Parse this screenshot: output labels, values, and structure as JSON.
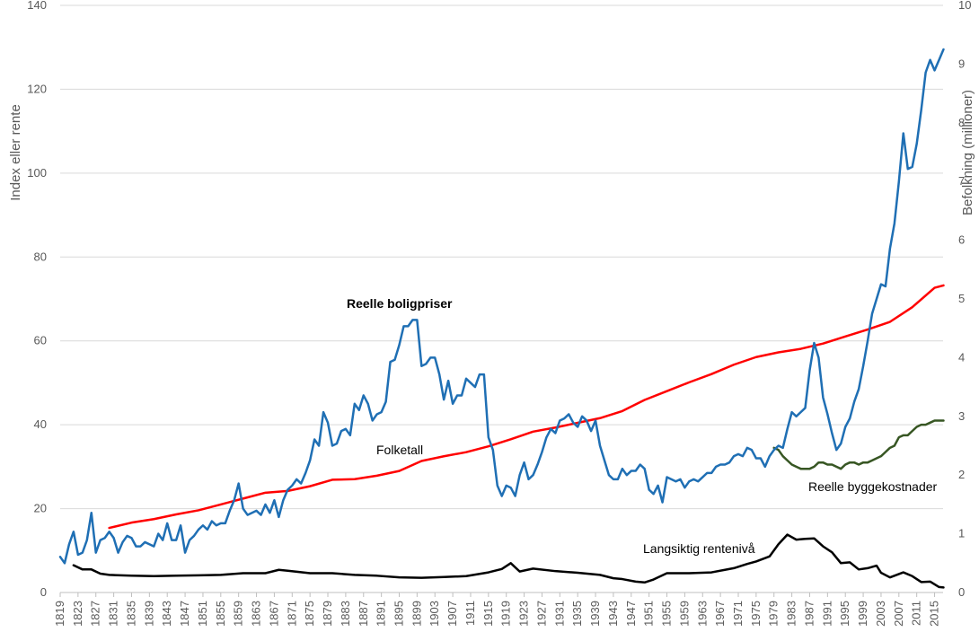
{
  "chart_data": {
    "type": "line",
    "ylabel_left": "Index eller rente",
    "ylabel_right": "Befolkning (millioner)",
    "xlim": [
      1819,
      2017
    ],
    "ylim_left": [
      0,
      140
    ],
    "ylim_right": [
      0,
      10
    ],
    "grid": true,
    "x_ticks": [
      "1819",
      "1823",
      "1827",
      "1831",
      "1835",
      "1839",
      "1843",
      "1847",
      "1851",
      "1855",
      "1859",
      "1863",
      "1867",
      "1871",
      "1875",
      "1879",
      "1883",
      "1887",
      "1891",
      "1895",
      "1899",
      "1903",
      "1907",
      "1911",
      "1915",
      "1919",
      "1923",
      "1927",
      "1931",
      "1935",
      "1939",
      "1943",
      "1947",
      "1951",
      "1955",
      "1959",
      "1963",
      "1967",
      "1971",
      "1975",
      "1979",
      "1983",
      "1987",
      "1991",
      "1995",
      "1999",
      "2003",
      "2007",
      "2011",
      "2015"
    ],
    "y_ticks_left": [
      "0",
      "20",
      "40",
      "60",
      "80",
      "100",
      "120",
      "140"
    ],
    "y_ticks_right": [
      "0",
      "1",
      "2",
      "3",
      "4",
      "5",
      "6",
      "7",
      "8",
      "9",
      "10"
    ],
    "annotations": {
      "boligpriser": "Reelle boligpriser",
      "folketall": "Folketall",
      "byggekostnader": "Reelle  byggekostnader",
      "rente": "Langsiktig rentenivå"
    },
    "series": [
      {
        "name": "Reelle boligpriser",
        "axis": "left",
        "color": "#1F6FB4",
        "x": [
          1819,
          1820,
          1821,
          1822,
          1823,
          1824,
          1825,
          1826,
          1827,
          1828,
          1829,
          1830,
          1831,
          1832,
          1833,
          1834,
          1835,
          1836,
          1837,
          1838,
          1839,
          1840,
          1841,
          1842,
          1843,
          1844,
          1845,
          1846,
          1847,
          1848,
          1849,
          1850,
          1851,
          1852,
          1853,
          1854,
          1855,
          1856,
          1857,
          1858,
          1859,
          1860,
          1861,
          1862,
          1863,
          1864,
          1865,
          1866,
          1867,
          1868,
          1869,
          1870,
          1871,
          1872,
          1873,
          1874,
          1875,
          1876,
          1877,
          1878,
          1879,
          1880,
          1881,
          1882,
          1883,
          1884,
          1885,
          1886,
          1887,
          1888,
          1889,
          1890,
          1891,
          1892,
          1893,
          1894,
          1895,
          1896,
          1897,
          1898,
          1899,
          1900,
          1901,
          1902,
          1903,
          1904,
          1905,
          1906,
          1907,
          1908,
          1909,
          1910,
          1911,
          1912,
          1913,
          1914,
          1915,
          1916,
          1917,
          1918,
          1919,
          1920,
          1921,
          1922,
          1923,
          1924,
          1925,
          1926,
          1927,
          1928,
          1929,
          1930,
          1931,
          1932,
          1933,
          1934,
          1935,
          1936,
          1937,
          1938,
          1939,
          1940,
          1941,
          1942,
          1943,
          1944,
          1945,
          1946,
          1947,
          1948,
          1949,
          1950,
          1951,
          1952,
          1953,
          1954,
          1955,
          1956,
          1957,
          1958,
          1959,
          1960,
          1961,
          1962,
          1963,
          1964,
          1965,
          1966,
          1967,
          1968,
          1969,
          1970,
          1971,
          1972,
          1973,
          1974,
          1975,
          1976,
          1977,
          1978,
          1979,
          1980,
          1981,
          1982,
          1983,
          1984,
          1985,
          1986,
          1987,
          1988,
          1989,
          1990,
          1991,
          1992,
          1993,
          1994,
          1995,
          1996,
          1997,
          1998,
          1999,
          2000,
          2001,
          2002,
          2003,
          2004,
          2005,
          2006,
          2007,
          2008,
          2009,
          2010,
          2011,
          2012,
          2013,
          2014,
          2015,
          2016,
          2017
        ],
        "values": [
          8.5,
          7,
          11.5,
          14.5,
          9,
          9.5,
          12.5,
          19,
          9.5,
          12.5,
          13,
          14.5,
          13,
          9.5,
          12,
          13.5,
          13,
          11,
          11,
          12,
          11.5,
          11,
          14,
          12.5,
          16.5,
          12.5,
          12.5,
          16,
          9.5,
          12.5,
          13.5,
          15,
          16,
          15,
          17,
          16,
          16.5,
          16.5,
          19.5,
          22,
          26,
          20,
          18.5,
          19,
          19.5,
          18.5,
          21,
          19,
          22,
          18,
          22,
          24.5,
          25.5,
          27,
          26,
          28.5,
          31.5,
          36.5,
          35,
          43,
          40.5,
          35,
          35.5,
          38.5,
          39,
          37.5,
          45,
          43.5,
          47,
          45,
          41,
          42.5,
          43,
          45.5,
          55,
          55.5,
          59,
          63.5,
          63.5,
          65,
          65,
          54,
          54.5,
          56,
          56,
          52,
          46,
          50.5,
          45,
          47,
          47,
          51,
          50,
          49,
          52,
          52,
          37,
          34,
          25.5,
          23,
          25.5,
          25,
          23,
          28,
          31,
          27,
          28,
          30.5,
          33.5,
          37,
          39,
          38,
          41,
          41.5,
          42.5,
          40.5,
          39.5,
          42,
          41,
          38.5,
          41,
          35,
          31.5,
          28,
          27,
          27,
          29.5,
          28,
          29,
          29,
          30.5,
          29.5,
          24.5,
          23.5,
          25.5,
          21.5,
          27.5,
          27,
          26.5,
          27,
          25,
          26.5,
          27,
          26.5,
          27.5,
          28.5,
          28.5,
          30,
          30.5,
          30.5,
          31,
          32.5,
          33,
          32.5,
          34.5,
          34,
          32,
          32,
          30,
          32.5,
          34,
          35,
          34.5,
          39,
          43,
          42,
          43,
          44,
          53,
          59.5,
          56,
          46.5,
          42.5,
          38,
          34,
          35.5,
          39.5,
          41.5,
          45.5,
          48.5,
          54,
          60,
          66.5,
          70,
          73.5,
          73,
          82,
          88,
          98,
          109.5,
          101,
          101.5,
          107,
          115,
          124,
          127,
          124.5,
          127,
          129.5
        ]
      },
      {
        "name": "Folketall",
        "axis": "right",
        "color": "#FF0000",
        "x": [
          1830,
          1835,
          1840,
          1845,
          1850,
          1855,
          1860,
          1865,
          1870,
          1875,
          1880,
          1885,
          1890,
          1895,
          1900,
          1905,
          1910,
          1915,
          1920,
          1925,
          1930,
          1935,
          1940,
          1945,
          1950,
          1955,
          1960,
          1965,
          1970,
          1975,
          1980,
          1985,
          1990,
          1995,
          2000,
          2005,
          2010,
          2015,
          2017
        ],
        "values": [
          1.1,
          1.19,
          1.25,
          1.33,
          1.4,
          1.5,
          1.6,
          1.7,
          1.73,
          1.81,
          1.92,
          1.93,
          1.99,
          2.07,
          2.24,
          2.32,
          2.39,
          2.49,
          2.61,
          2.74,
          2.81,
          2.89,
          2.97,
          3.09,
          3.28,
          3.43,
          3.58,
          3.72,
          3.88,
          4.01,
          4.09,
          4.15,
          4.24,
          4.36,
          4.48,
          4.61,
          4.86,
          5.19,
          5.23
        ]
      },
      {
        "name": "Reelle  byggekostnader",
        "axis": "left",
        "color": "#375623",
        "x": [
          1979,
          1980,
          1981,
          1982,
          1983,
          1984,
          1985,
          1986,
          1987,
          1988,
          1989,
          1990,
          1991,
          1992,
          1993,
          1994,
          1995,
          1996,
          1997,
          1998,
          1999,
          2000,
          2001,
          2002,
          2003,
          2004,
          2005,
          2006,
          2007,
          2008,
          2009,
          2010,
          2011,
          2012,
          2013,
          2014,
          2015,
          2016,
          2017
        ],
        "values": [
          34.5,
          34,
          32.5,
          31.5,
          30.5,
          30,
          29.5,
          29.5,
          29.5,
          30,
          31,
          31,
          30.5,
          30.5,
          30,
          29.5,
          30.5,
          31,
          31,
          30.5,
          31,
          31,
          31.5,
          32,
          32.5,
          33.5,
          34.5,
          35,
          37,
          37.5,
          37.5,
          38.5,
          39.5,
          40,
          40,
          40.5,
          41,
          41,
          41
        ]
      },
      {
        "name": "Langsiktig rentenivå",
        "axis": "left",
        "color": "#000000",
        "x": [
          1822,
          1824,
          1826,
          1828,
          1830,
          1835,
          1840,
          1845,
          1850,
          1855,
          1860,
          1865,
          1868,
          1870,
          1875,
          1880,
          1885,
          1890,
          1895,
          1900,
          1905,
          1910,
          1915,
          1918,
          1920,
          1922,
          1925,
          1930,
          1935,
          1940,
          1943,
          1945,
          1948,
          1950,
          1952,
          1955,
          1960,
          1965,
          1970,
          1973,
          1975,
          1978,
          1980,
          1982,
          1984,
          1986,
          1988,
          1990,
          1992,
          1994,
          1996,
          1998,
          2000,
          2002,
          2003,
          2005,
          2008,
          2010,
          2012,
          2014,
          2016,
          2017
        ],
        "values": [
          6.5,
          5.5,
          5.5,
          4.5,
          4.2,
          4,
          3.9,
          4,
          4.1,
          4.2,
          4.6,
          4.6,
          5.4,
          5.2,
          4.6,
          4.6,
          4.2,
          4,
          3.6,
          3.5,
          3.7,
          3.9,
          4.8,
          5.6,
          7,
          5,
          5.7,
          5.1,
          4.7,
          4.2,
          3.4,
          3.2,
          2.6,
          2.4,
          3.1,
          4.6,
          4.6,
          4.8,
          5.8,
          6.8,
          7.4,
          8.6,
          11.5,
          13.8,
          12.6,
          12.8,
          12.9,
          11,
          9.6,
          7,
          7.2,
          5.5,
          5.8,
          6.4,
          4.7,
          3.6,
          4.8,
          3.9,
          2.5,
          2.6,
          1.3,
          1.2
        ]
      }
    ]
  }
}
